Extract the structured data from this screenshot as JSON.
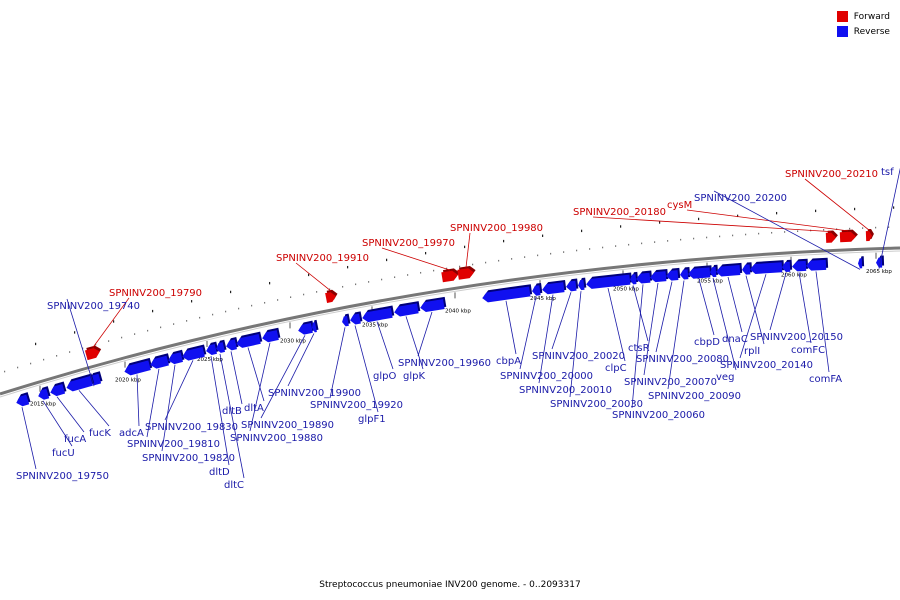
{
  "caption": "Streptococcus pneumoniae INV200 genome. - 0..2093317",
  "legend": [
    {
      "label": "Forward",
      "color": "#e00000"
    },
    {
      "label": "Reverse",
      "color": "#1010f0"
    }
  ],
  "colors": {
    "forward": "#e00000",
    "reverse": "#1010f0",
    "label_forward": "#cc0000",
    "label_reverse": "#1a1aa8",
    "backbone": "#777777"
  },
  "scale": {
    "unit": "kbp",
    "ticks": [
      2015,
      2020,
      2025,
      2030,
      2035,
      2040,
      2045,
      2050,
      2055,
      2060,
      2065
    ]
  },
  "genes": [
    {
      "label": "SPNINV200_19740",
      "strand": "reverse"
    },
    {
      "label": "SPNINV200_19750",
      "strand": "reverse"
    },
    {
      "label": "fucU",
      "strand": "reverse"
    },
    {
      "label": "fucA",
      "strand": "reverse"
    },
    {
      "label": "fucK",
      "strand": "reverse"
    },
    {
      "label": "SPNINV200_19790",
      "strand": "forward"
    },
    {
      "label": "adcA",
      "strand": "reverse"
    },
    {
      "label": "SPNINV200_19810",
      "strand": "reverse"
    },
    {
      "label": "SPNINV200_19820",
      "strand": "reverse"
    },
    {
      "label": "SPNINV200_19830",
      "strand": "reverse"
    },
    {
      "label": "dltD",
      "strand": "reverse"
    },
    {
      "label": "dltC",
      "strand": "reverse"
    },
    {
      "label": "dltB",
      "strand": "reverse"
    },
    {
      "label": "dltA",
      "strand": "reverse"
    },
    {
      "label": "SPNINV200_19880",
      "strand": "reverse"
    },
    {
      "label": "SPNINV200_19890",
      "strand": "reverse"
    },
    {
      "label": "SPNINV200_19900",
      "strand": "reverse"
    },
    {
      "label": "SPNINV200_19910",
      "strand": "forward"
    },
    {
      "label": "SPNINV200_19920",
      "strand": "reverse"
    },
    {
      "label": "glpF1",
      "strand": "reverse"
    },
    {
      "label": "glpO",
      "strand": "reverse"
    },
    {
      "label": "glpK",
      "strand": "reverse"
    },
    {
      "label": "SPNINV200_19960",
      "strand": "reverse"
    },
    {
      "label": "SPNINV200_19970",
      "strand": "forward"
    },
    {
      "label": "SPNINV200_19980",
      "strand": "forward"
    },
    {
      "label": "cbpA",
      "strand": "reverse"
    },
    {
      "label": "SPNINV200_20000",
      "strand": "reverse"
    },
    {
      "label": "SPNINV200_20010",
      "strand": "reverse"
    },
    {
      "label": "SPNINV200_20020",
      "strand": "reverse"
    },
    {
      "label": "SPNINV200_20030",
      "strand": "reverse"
    },
    {
      "label": "clpC",
      "strand": "reverse"
    },
    {
      "label": "ctsR",
      "strand": "reverse"
    },
    {
      "label": "SPNINV200_20060",
      "strand": "reverse"
    },
    {
      "label": "SPNINV200_20070",
      "strand": "reverse"
    },
    {
      "label": "SPNINV200_20080",
      "strand": "reverse"
    },
    {
      "label": "SPNINV200_20090",
      "strand": "reverse"
    },
    {
      "label": "cbpD",
      "strand": "reverse"
    },
    {
      "label": "veg",
      "strand": "reverse"
    },
    {
      "label": "dnaC",
      "strand": "reverse"
    },
    {
      "label": "rplI",
      "strand": "reverse"
    },
    {
      "label": "SPNINV200_20140",
      "strand": "reverse"
    },
    {
      "label": "SPNINV200_20150",
      "strand": "reverse"
    },
    {
      "label": "comFC",
      "strand": "reverse"
    },
    {
      "label": "comFA",
      "strand": "reverse"
    },
    {
      "label": "SPNINV200_20180",
      "strand": "forward"
    },
    {
      "label": "cysM",
      "strand": "forward"
    },
    {
      "label": "SPNINV200_20200",
      "strand": "reverse"
    },
    {
      "label": "SPNINV200_20210",
      "strand": "forward"
    },
    {
      "label": "tsf",
      "strand": "reverse"
    }
  ]
}
